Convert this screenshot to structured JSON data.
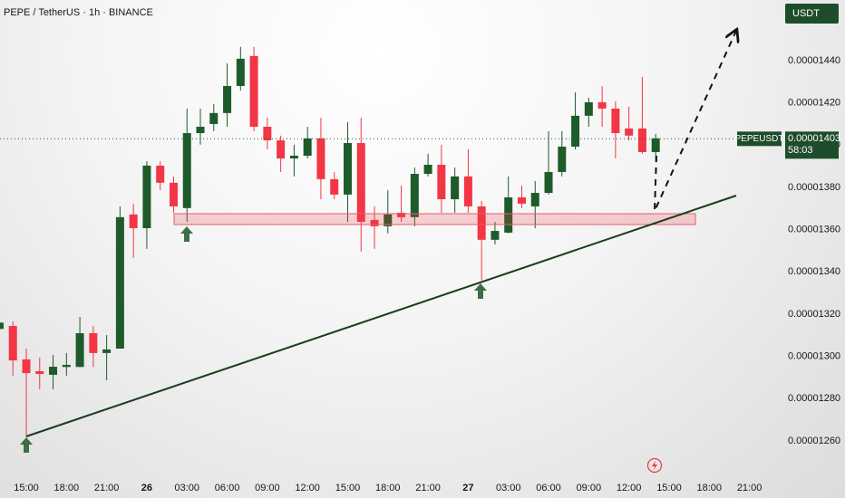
{
  "chart_data": {
    "type": "candlestick",
    "title": "PEPE / TetherUS · 1h · BINANCE",
    "unit_label": "USDT",
    "symbol_label": "PEPEUSDT",
    "last_price": {
      "value": 1.403e-05,
      "label": "0.00001403"
    },
    "countdown": "58:03",
    "up_color": "#1e5b2a",
    "down_color": "#f23645",
    "categories": [
      null,
      null,
      "15:00",
      null,
      null,
      "18:00",
      null,
      null,
      "21:00",
      null,
      null,
      "26",
      null,
      null,
      "03:00",
      null,
      null,
      "06:00",
      null,
      null,
      "09:00",
      null,
      null,
      "12:00",
      null,
      null,
      "15:00",
      null,
      null,
      "18:00",
      null,
      null,
      "21:00",
      null,
      null,
      "27",
      null,
      null,
      "03:00",
      null,
      null,
      "06:00",
      null,
      null,
      "09:00",
      null,
      null,
      "12:00",
      null,
      null,
      "15:00",
      null,
      null,
      "18:00",
      null,
      null,
      "21:00"
    ],
    "open": [
      1.313e-05,
      1.3144e-05,
      1.2986e-05,
      1.293e-05,
      1.2913e-05,
      1.295e-05,
      1.295e-05,
      1.311e-05,
      1.3016e-05,
      1.3037e-05,
      1.3672e-05,
      1.3607e-05,
      1.3903e-05,
      1.3822e-05,
      1.3702e-05,
      1.4057e-05,
      1.41e-05,
      1.4152e-05,
      1.428e-05,
      1.4422e-05,
      1.4087e-05,
      1.4023e-05,
      1.3937e-05,
      1.395e-05,
      1.4032e-05,
      1.3839e-05,
      1.3766e-05,
      1.401e-05,
      1.3646e-05,
      1.3616e-05,
      1.368e-05,
      1.3659e-05,
      1.3864e-05,
      1.3907e-05,
      1.3744e-05,
      1.3852e-05,
      1.371e-05,
      1.3552e-05,
      1.3586e-05,
      1.3753e-05,
      1.371e-05,
      1.3774e-05,
      1.3873e-05,
      1.3993e-05,
      1.4139e-05,
      1.4203e-05,
      1.4173e-05,
      1.4079e-05,
      1.4079e-05,
      1.3967e-05,
      null,
      null,
      null,
      null,
      null,
      null,
      null
    ],
    "high": [
      1.325e-05,
      1.3166e-05,
      1.3037e-05,
      1.2994e-05,
      1.3007e-05,
      1.3016e-05,
      1.3187e-05,
      1.3144e-05,
      1.3101e-05,
      1.371e-05,
      1.3723e-05,
      1.3924e-05,
      1.3924e-05,
      1.3852e-05,
      1.4173e-05,
      1.4173e-05,
      1.4195e-05,
      1.4387e-05,
      1.4465e-05,
      1.4465e-05,
      1.413e-05,
      1.4045e-05,
      1.4002e-05,
      1.4087e-05,
      1.413e-05,
      1.3873e-05,
      1.4109e-05,
      1.413e-05,
      1.371e-05,
      1.3787e-05,
      1.3809e-05,
      1.3894e-05,
      1.3959e-05,
      1.4002e-05,
      1.3894e-05,
      1.398e-05,
      1.3736e-05,
      1.3637e-05,
      1.3852e-05,
      1.3809e-05,
      1.383e-05,
      1.4066e-05,
      1.4066e-05,
      1.425e-05,
      1.4225e-05,
      1.428e-05,
      1.4207e-05,
      1.4182e-05,
      1.4323e-05,
      1.4053e-05,
      null,
      null,
      null,
      null,
      null,
      null,
      null
    ],
    "low": [
      1.312e-05,
      1.2909e-05,
      1.2621e-05,
      1.2844e-05,
      1.2844e-05,
      1.2909e-05,
      1.2951e-05,
      1.295e-05,
      1.2887e-05,
      1.3037e-05,
      1.3466e-05,
      1.3509e-05,
      1.3787e-05,
      1.368e-05,
      1.3637e-05,
      1.4002e-05,
      1.4066e-05,
      1.4087e-05,
      1.4259e-05,
      1.4066e-05,
      1.398e-05,
      1.3873e-05,
      1.3852e-05,
      1.3937e-05,
      1.3744e-05,
      1.3744e-05,
      1.3637e-05,
      1.3496e-05,
      1.3509e-05,
      1.3582e-05,
      1.3637e-05,
      1.3616e-05,
      1.3852e-05,
      1.368e-05,
      1.368e-05,
      1.368e-05,
      1.3359e-05,
      1.353e-05,
      1.3582e-05,
      1.3702e-05,
      1.3607e-05,
      1.3766e-05,
      1.3852e-05,
      1.398e-05,
      1.4087e-05,
      1.4087e-05,
      1.3937e-05,
      1.4023e-05,
      1.3959e-05,
      1.3924e-05,
      null,
      null,
      null,
      null,
      null,
      null,
      null
    ],
    "close": [
      1.316e-05,
      1.2981e-05,
      1.2921e-05,
      1.2917e-05,
      1.2951e-05,
      1.296e-05,
      1.311e-05,
      1.3016e-05,
      1.3033e-05,
      1.3659e-05,
      1.3607e-05,
      1.3903e-05,
      1.3822e-05,
      1.371e-05,
      1.4057e-05,
      1.4087e-05,
      1.4152e-05,
      1.428e-05,
      1.4409e-05,
      1.4087e-05,
      1.4023e-05,
      1.3937e-05,
      1.395e-05,
      1.4032e-05,
      1.3839e-05,
      1.3766e-05,
      1.401e-05,
      1.3637e-05,
      1.3616e-05,
      1.3672e-05,
      1.3659e-05,
      1.3864e-05,
      1.3907e-05,
      1.3744e-05,
      1.3852e-05,
      1.371e-05,
      1.3552e-05,
      1.3594e-05,
      1.3753e-05,
      1.3723e-05,
      1.3774e-05,
      1.3873e-05,
      1.3993e-05,
      1.4139e-05,
      1.4203e-05,
      1.4173e-05,
      1.4057e-05,
      1.4045e-05,
      1.3967e-05,
      1.4032e-05,
      null,
      null,
      null,
      null,
      null,
      null,
      null
    ],
    "ylim": [
      1.2437e-05,
      1.4687e-05
    ],
    "yticks": [
      {
        "value": 1.26e-05,
        "label": "0.00001260"
      },
      {
        "value": 1.28e-05,
        "label": "0.00001280"
      },
      {
        "value": 1.3e-05,
        "label": "0.00001300"
      },
      {
        "value": 1.32e-05,
        "label": "0.00001320"
      },
      {
        "value": 1.34e-05,
        "label": "0.00001340"
      },
      {
        "value": 1.36e-05,
        "label": "0.00001360"
      },
      {
        "value": 1.38e-05,
        "label": "0.00001380"
      },
      {
        "value": 1.4e-05,
        "label": "0.00001400"
      },
      {
        "value": 1.42e-05,
        "label": "0.00001420"
      },
      {
        "value": 1.44e-05,
        "label": "0.00001440"
      }
    ],
    "grid": false
  }
}
